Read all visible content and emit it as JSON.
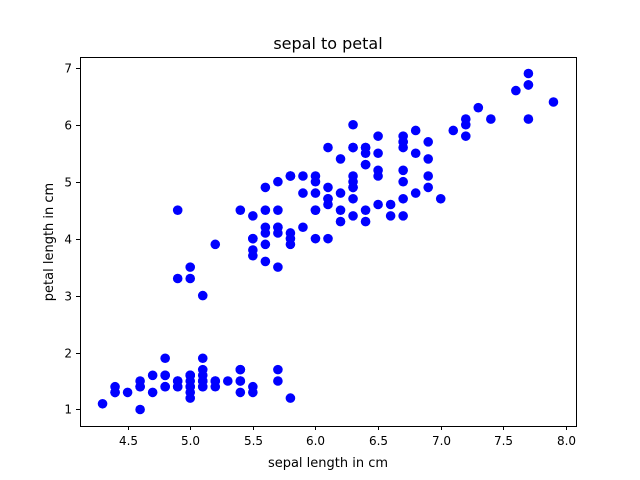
{
  "chart_data": {
    "type": "scatter",
    "title": "sepal to petal",
    "xlabel": "sepal length in cm",
    "ylabel": "petal length in cm",
    "xlim": [
      4.12,
      8.08
    ],
    "ylim": [
      0.71,
      7.19
    ],
    "xticks": [
      4.5,
      5.0,
      5.5,
      6.0,
      6.5,
      7.0,
      7.5,
      8.0
    ],
    "xtick_labels": [
      "4.5",
      "5.0",
      "5.5",
      "6.0",
      "6.5",
      "7.0",
      "7.5",
      "8.0"
    ],
    "yticks": [
      1,
      2,
      3,
      4,
      5,
      6,
      7
    ],
    "ytick_labels": [
      "1",
      "2",
      "3",
      "4",
      "5",
      "6",
      "7"
    ],
    "grid": false,
    "marker_color": "#0000ff",
    "series": [
      {
        "name": "",
        "points": [
          [
            5.1,
            1.4
          ],
          [
            4.9,
            1.4
          ],
          [
            4.7,
            1.3
          ],
          [
            4.6,
            1.5
          ],
          [
            5.0,
            1.4
          ],
          [
            5.4,
            1.7
          ],
          [
            4.6,
            1.4
          ],
          [
            5.0,
            1.5
          ],
          [
            4.4,
            1.4
          ],
          [
            4.9,
            1.5
          ],
          [
            5.4,
            1.5
          ],
          [
            4.8,
            1.6
          ],
          [
            4.8,
            1.4
          ],
          [
            4.3,
            1.1
          ],
          [
            5.8,
            1.2
          ],
          [
            5.7,
            1.5
          ],
          [
            5.4,
            1.3
          ],
          [
            5.1,
            1.4
          ],
          [
            5.7,
            1.7
          ],
          [
            5.1,
            1.5
          ],
          [
            5.4,
            1.7
          ],
          [
            5.1,
            1.5
          ],
          [
            4.6,
            1.0
          ],
          [
            5.1,
            1.7
          ],
          [
            4.8,
            1.9
          ],
          [
            5.0,
            1.6
          ],
          [
            5.0,
            1.6
          ],
          [
            5.2,
            1.5
          ],
          [
            5.2,
            1.4
          ],
          [
            4.7,
            1.6
          ],
          [
            4.8,
            1.6
          ],
          [
            5.4,
            1.5
          ],
          [
            5.2,
            1.5
          ],
          [
            5.5,
            1.4
          ],
          [
            4.9,
            1.5
          ],
          [
            5.0,
            1.2
          ],
          [
            5.5,
            1.3
          ],
          [
            4.9,
            1.4
          ],
          [
            4.4,
            1.3
          ],
          [
            5.1,
            1.5
          ],
          [
            5.0,
            1.3
          ],
          [
            4.5,
            1.3
          ],
          [
            4.4,
            1.3
          ],
          [
            5.0,
            1.6
          ],
          [
            5.1,
            1.9
          ],
          [
            4.8,
            1.4
          ],
          [
            5.1,
            1.6
          ],
          [
            4.6,
            1.4
          ],
          [
            5.3,
            1.5
          ],
          [
            5.0,
            1.4
          ],
          [
            7.0,
            4.7
          ],
          [
            6.4,
            4.5
          ],
          [
            6.9,
            4.9
          ],
          [
            5.5,
            4.0
          ],
          [
            6.5,
            4.6
          ],
          [
            5.7,
            4.5
          ],
          [
            6.3,
            4.7
          ],
          [
            4.9,
            3.3
          ],
          [
            6.6,
            4.6
          ],
          [
            5.2,
            3.9
          ],
          [
            5.0,
            3.5
          ],
          [
            5.9,
            4.2
          ],
          [
            6.0,
            4.0
          ],
          [
            6.1,
            4.7
          ],
          [
            5.6,
            3.6
          ],
          [
            6.7,
            4.4
          ],
          [
            5.6,
            4.5
          ],
          [
            5.8,
            4.1
          ],
          [
            6.2,
            4.5
          ],
          [
            5.6,
            3.9
          ],
          [
            5.9,
            4.8
          ],
          [
            6.1,
            4.0
          ],
          [
            6.3,
            4.9
          ],
          [
            6.1,
            4.7
          ],
          [
            6.4,
            4.3
          ],
          [
            6.6,
            4.4
          ],
          [
            6.8,
            4.8
          ],
          [
            6.7,
            5.0
          ],
          [
            6.0,
            4.5
          ],
          [
            5.7,
            3.5
          ],
          [
            5.5,
            3.8
          ],
          [
            5.5,
            3.7
          ],
          [
            5.8,
            3.9
          ],
          [
            6.0,
            5.1
          ],
          [
            5.4,
            4.5
          ],
          [
            6.0,
            4.5
          ],
          [
            6.7,
            4.7
          ],
          [
            6.3,
            4.4
          ],
          [
            5.6,
            4.1
          ],
          [
            5.5,
            4.0
          ],
          [
            5.5,
            4.4
          ],
          [
            6.1,
            4.6
          ],
          [
            5.8,
            4.0
          ],
          [
            5.0,
            3.3
          ],
          [
            5.6,
            4.2
          ],
          [
            5.7,
            4.2
          ],
          [
            5.7,
            4.2
          ],
          [
            6.2,
            4.3
          ],
          [
            5.1,
            3.0
          ],
          [
            5.7,
            4.1
          ],
          [
            6.3,
            6.0
          ],
          [
            5.8,
            5.1
          ],
          [
            7.1,
            5.9
          ],
          [
            6.3,
            5.6
          ],
          [
            6.5,
            5.8
          ],
          [
            7.6,
            6.6
          ],
          [
            4.9,
            4.5
          ],
          [
            7.3,
            6.3
          ],
          [
            6.7,
            5.8
          ],
          [
            7.2,
            6.1
          ],
          [
            6.5,
            5.1
          ],
          [
            6.4,
            5.3
          ],
          [
            6.8,
            5.5
          ],
          [
            5.7,
            5.0
          ],
          [
            5.8,
            5.1
          ],
          [
            6.4,
            5.3
          ],
          [
            6.5,
            5.5
          ],
          [
            7.7,
            6.7
          ],
          [
            7.7,
            6.9
          ],
          [
            6.0,
            5.0
          ],
          [
            6.9,
            5.7
          ],
          [
            5.6,
            4.9
          ],
          [
            7.7,
            6.7
          ],
          [
            6.3,
            4.9
          ],
          [
            6.7,
            5.7
          ],
          [
            7.2,
            6.0
          ],
          [
            6.2,
            4.8
          ],
          [
            6.1,
            4.9
          ],
          [
            6.4,
            5.6
          ],
          [
            7.2,
            5.8
          ],
          [
            7.4,
            6.1
          ],
          [
            7.9,
            6.4
          ],
          [
            6.4,
            5.6
          ],
          [
            6.3,
            5.1
          ],
          [
            6.1,
            5.6
          ],
          [
            7.7,
            6.1
          ],
          [
            6.3,
            5.6
          ],
          [
            6.4,
            5.5
          ],
          [
            6.0,
            4.8
          ],
          [
            6.9,
            5.4
          ],
          [
            6.7,
            5.6
          ],
          [
            6.9,
            5.1
          ],
          [
            5.8,
            5.1
          ],
          [
            6.8,
            5.9
          ],
          [
            6.7,
            5.7
          ],
          [
            6.7,
            5.2
          ],
          [
            6.3,
            5.0
          ],
          [
            6.5,
            5.2
          ],
          [
            6.2,
            5.4
          ],
          [
            5.9,
            5.1
          ]
        ]
      }
    ]
  }
}
